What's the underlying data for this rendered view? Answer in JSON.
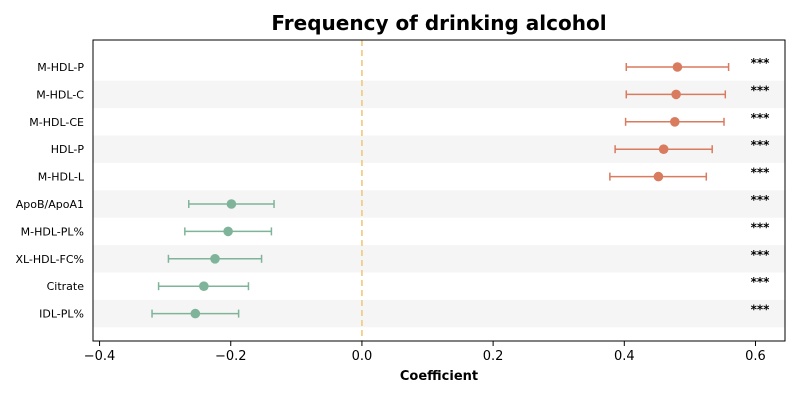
{
  "chart_data": {
    "type": "forest",
    "title": "Frequency of drinking alcohol",
    "xlabel": "Coefficient",
    "ylabel": "",
    "xlim": [
      -0.41,
      0.645
    ],
    "xticks": [
      -0.4,
      -0.2,
      0.0,
      0.2,
      0.4,
      0.6
    ],
    "xtick_labels": [
      "−0.4",
      "−0.2",
      "0.0",
      "0.2",
      "0.4",
      "0.6"
    ],
    "reference_line": 0.0,
    "grid": false,
    "colors": {
      "positive": "#d97b5f",
      "negative": "#7fb49a",
      "reference": "#f0c87a",
      "band": "#f5f5f5"
    },
    "rows": [
      {
        "label": "M-HDL-P",
        "estimate": 0.481,
        "lower": 0.403,
        "upper": 0.559,
        "significance": "***"
      },
      {
        "label": "M-HDL-C",
        "estimate": 0.479,
        "lower": 0.403,
        "upper": 0.554,
        "significance": "***"
      },
      {
        "label": "M-HDL-CE",
        "estimate": 0.477,
        "lower": 0.402,
        "upper": 0.552,
        "significance": "***"
      },
      {
        "label": "HDL-P",
        "estimate": 0.46,
        "lower": 0.386,
        "upper": 0.534,
        "significance": "***"
      },
      {
        "label": "M-HDL-L",
        "estimate": 0.452,
        "lower": 0.378,
        "upper": 0.525,
        "significance": "***"
      },
      {
        "label": "ApoB/ApoA1",
        "estimate": -0.199,
        "lower": -0.264,
        "upper": -0.134,
        "significance": "***"
      },
      {
        "label": "M-HDL-PL%",
        "estimate": -0.204,
        "lower": -0.27,
        "upper": -0.138,
        "significance": "***"
      },
      {
        "label": "XL-HDL-FC%",
        "estimate": -0.224,
        "lower": -0.295,
        "upper": -0.153,
        "significance": "***"
      },
      {
        "label": "Citrate",
        "estimate": -0.241,
        "lower": -0.31,
        "upper": -0.173,
        "significance": "***"
      },
      {
        "label": "IDL-PL%",
        "estimate": -0.254,
        "lower": -0.32,
        "upper": -0.188,
        "significance": "***"
      }
    ]
  }
}
